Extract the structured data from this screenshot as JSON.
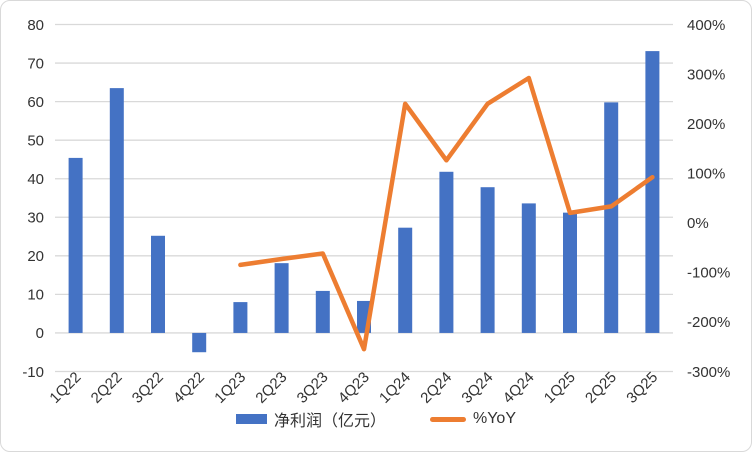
{
  "chart_style": {
    "bar_color": "#4472C4",
    "line_color": "#ED7D31",
    "grid_color": "#D9D9D9",
    "axis_line_color": "#D9D9D9",
    "text_color": "#333333",
    "border_color": "#D9D9D9",
    "background": "#FFFFFF"
  },
  "chart_data": {
    "type": "combo-bar-line",
    "title": "",
    "categories": [
      "1Q22",
      "2Q22",
      "3Q22",
      "4Q22",
      "1Q23",
      "2Q23",
      "3Q23",
      "4Q23",
      "1Q24",
      "2Q24",
      "3Q24",
      "4Q24",
      "1Q25",
      "2Q25",
      "3Q25"
    ],
    "series": [
      {
        "name": "净利润（亿元）",
        "type": "bar",
        "axis": "left",
        "color": "#4472C4",
        "values": [
          45.4,
          63.5,
          25.2,
          -5.0,
          8.0,
          18.1,
          10.9,
          8.3,
          27.3,
          41.8,
          37.8,
          33.6,
          31.2,
          59.8,
          73.1
        ]
      },
      {
        "name": "%YoY",
        "type": "line",
        "axis": "right",
        "color": "#ED7D31",
        "values": [
          null,
          null,
          null,
          null,
          -85,
          -73,
          -62,
          -255,
          240,
          126,
          240,
          292,
          20,
          33,
          92
        ]
      }
    ],
    "left_axis": {
      "min": -10,
      "max": 80,
      "step": 10,
      "tick_labels": [
        "80",
        "70",
        "60",
        "50",
        "40",
        "30",
        "20",
        "10",
        "0",
        "-10"
      ]
    },
    "right_axis": {
      "min": -300,
      "max": 400,
      "step": 100,
      "tick_labels": [
        "400%",
        "300%",
        "200%",
        "100%",
        "0%",
        "-100%",
        "-200%",
        "-300%"
      ]
    },
    "grid": true,
    "legend_position": "bottom"
  }
}
